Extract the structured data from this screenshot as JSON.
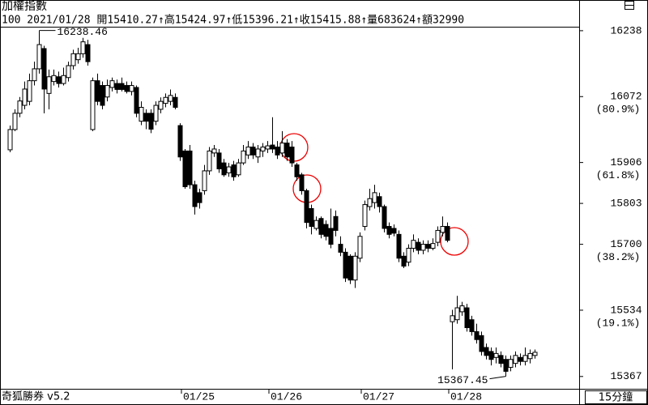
{
  "chart_data": {
    "type": "candlestick",
    "title": "加權指數",
    "subtitle": "100 2021/01/28 開15410.27↑高15424.97↑低15396.21↑收15415.88↑量683624↑額32990",
    "footer_left": "奇狐勝券 v5.2",
    "interval": "15分鐘",
    "up_color": "#ffffff",
    "down_color": "#000000",
    "ylim": [
      15336,
      16248
    ],
    "yticks": [
      16238,
      16072,
      15906,
      15803,
      15700,
      15534,
      15367
    ],
    "fib_levels": [
      {
        "value": 16072,
        "label": "(80.9%)"
      },
      {
        "value": 15906,
        "label": "(61.8%)"
      },
      {
        "value": 15700,
        "label": "(38.2%)"
      },
      {
        "value": 15534,
        "label": "(19.1%)"
      }
    ],
    "annotations": [
      {
        "value": 16238.46,
        "label": "16238.46"
      },
      {
        "value": 15367.45,
        "label": "15367.45"
      }
    ],
    "categories": [
      null,
      null,
      null,
      null,
      null,
      null,
      null,
      null,
      null,
      null,
      null,
      null,
      null,
      null,
      null,
      null,
      null,
      null,
      null,
      null,
      null,
      null,
      null,
      null,
      null,
      null,
      null,
      null,
      null,
      null,
      null,
      null,
      null,
      null,
      null,
      null,
      "01/25",
      null,
      null,
      null,
      null,
      null,
      null,
      null,
      null,
      null,
      null,
      null,
      null,
      null,
      null,
      null,
      null,
      null,
      "01/26",
      null,
      null,
      null,
      null,
      null,
      null,
      null,
      null,
      null,
      null,
      null,
      null,
      null,
      null,
      null,
      null,
      null,
      null,
      "01/27",
      null,
      null,
      null,
      null,
      null,
      null,
      null,
      null,
      null,
      null,
      null,
      null,
      null,
      null,
      null,
      null,
      null,
      "01/28",
      null,
      null,
      null,
      null,
      null,
      null,
      null,
      null,
      null,
      null,
      null,
      null,
      null,
      null,
      null,
      null,
      null
    ],
    "ohlc": [
      [
        15938,
        15999,
        15932,
        15989
      ],
      [
        15989,
        16040,
        15985,
        16030
      ],
      [
        16030,
        16071,
        16020,
        16061
      ],
      [
        16050,
        16110,
        16040,
        16091
      ],
      [
        16060,
        16130,
        16050,
        16112
      ],
      [
        16112,
        16160,
        16100,
        16142
      ],
      [
        16142,
        16238.46,
        16130,
        16203
      ],
      [
        16193,
        16200,
        16030,
        16091
      ],
      [
        16080,
        16140,
        16040,
        16122
      ],
      [
        16110,
        16140,
        16100,
        16125
      ],
      [
        16122,
        16135,
        16095,
        16105
      ],
      [
        16105,
        16145,
        16100,
        16125
      ],
      [
        16120,
        16160,
        16110,
        16150
      ],
      [
        16150,
        16190,
        16140,
        16180
      ],
      [
        16165,
        16195,
        16155,
        16180
      ],
      [
        16180,
        16220,
        16170,
        16210
      ],
      [
        16203,
        16215,
        16150,
        16160
      ],
      [
        15989,
        16120,
        15985,
        16112
      ],
      [
        16112,
        16130,
        16050,
        16060
      ],
      [
        16100,
        16110,
        16040,
        16050
      ],
      [
        16071,
        16115,
        16060,
        16100
      ],
      [
        16095,
        16120,
        16085,
        16112
      ],
      [
        16105,
        16115,
        16080,
        16090
      ],
      [
        16105,
        16120,
        16085,
        16090
      ],
      [
        16100,
        16110,
        16080,
        16085
      ],
      [
        16085,
        16110,
        16075,
        16100
      ],
      [
        16095,
        16100,
        16020,
        16030
      ],
      [
        16010,
        16060,
        16000,
        16045
      ],
      [
        16030,
        16040,
        15990,
        16010
      ],
      [
        16030,
        16040,
        15980,
        15990
      ],
      [
        16010,
        16060,
        16000,
        16050
      ],
      [
        16040,
        16070,
        16030,
        16060
      ],
      [
        16055,
        16080,
        16045,
        16070
      ],
      [
        16060,
        16090,
        16050,
        16075
      ],
      [
        16070,
        16080,
        16040,
        16045
      ],
      [
        15999,
        16005,
        15910,
        15920
      ],
      [
        15935,
        15940,
        15840,
        15845
      ],
      [
        15935,
        15950,
        15840,
        15850
      ],
      [
        15850,
        15860,
        15775,
        15795
      ],
      [
        15830,
        15840,
        15790,
        15805
      ],
      [
        15835,
        15900,
        15825,
        15885
      ],
      [
        15885,
        15945,
        15875,
        15935
      ],
      [
        15930,
        15950,
        15920,
        15940
      ],
      [
        15930,
        15940,
        15880,
        15890
      ],
      [
        15905,
        15915,
        15870,
        15875
      ],
      [
        15880,
        15905,
        15870,
        15895
      ],
      [
        15900,
        15910,
        15860,
        15870
      ],
      [
        15875,
        15915,
        15870,
        15905
      ],
      [
        15905,
        15950,
        15900,
        15935
      ],
      [
        15925,
        15960,
        15915,
        15945
      ],
      [
        15945,
        15955,
        15915,
        15925
      ],
      [
        15920,
        15950,
        15905,
        15940
      ],
      [
        15935,
        15955,
        15920,
        15945
      ],
      [
        15940,
        15960,
        15930,
        15948
      ],
      [
        15950,
        16020,
        15930,
        15940
      ],
      [
        15945,
        15960,
        15915,
        15925
      ],
      [
        15930,
        15985,
        15920,
        15955
      ],
      [
        15955,
        15965,
        15910,
        15920
      ],
      [
        15945,
        15960,
        15895,
        15905
      ],
      [
        15900,
        15905,
        15860,
        15870
      ],
      [
        15875,
        15880,
        15825,
        15835
      ],
      [
        15835,
        15840,
        15740,
        15755
      ],
      [
        15790,
        15800,
        15725,
        15745
      ],
      [
        15740,
        15770,
        15735,
        15760
      ],
      [
        15765,
        15770,
        15715,
        15725
      ],
      [
        15750,
        15760,
        15710,
        15720
      ],
      [
        15740,
        15790,
        15690,
        15700
      ],
      [
        15770,
        15785,
        15720,
        15735
      ],
      [
        15700,
        15720,
        15670,
        15680
      ],
      [
        15680,
        15690,
        15605,
        15615
      ],
      [
        15670,
        15675,
        15600,
        15610
      ],
      [
        15610,
        15680,
        15590,
        15670
      ],
      [
        15665,
        15730,
        15655,
        15720
      ],
      [
        15745,
        15810,
        15735,
        15800
      ],
      [
        15795,
        15840,
        15785,
        15815
      ],
      [
        15805,
        15850,
        15790,
        15830
      ],
      [
        15820,
        15830,
        15780,
        15795
      ],
      [
        15795,
        15800,
        15730,
        15740
      ],
      [
        15745,
        15755,
        15715,
        15725
      ],
      [
        15740,
        15750,
        15720,
        15728
      ],
      [
        15725,
        15735,
        15655,
        15665
      ],
      [
        15670,
        15680,
        15640,
        15645
      ],
      [
        15655,
        15700,
        15645,
        15690
      ],
      [
        15690,
        15725,
        15680,
        15710
      ],
      [
        15705,
        15715,
        15675,
        15685
      ],
      [
        15685,
        15710,
        15675,
        15700
      ],
      [
        15700,
        15710,
        15680,
        15690
      ],
      [
        15690,
        15715,
        15685,
        15702
      ],
      [
        15705,
        15745,
        15695,
        15735
      ],
      [
        15730,
        15770,
        15720,
        15745
      ],
      [
        15745,
        15755,
        15705,
        15710
      ],
      [
        15505,
        15535,
        15385,
        15520
      ],
      [
        15510,
        15570,
        15500,
        15540
      ],
      [
        15530,
        15555,
        15520,
        15545
      ],
      [
        15540,
        15550,
        15480,
        15490
      ],
      [
        15510,
        15520,
        15470,
        15480
      ],
      [
        15480,
        15500,
        15450,
        15460
      ],
      [
        15470,
        15480,
        15420,
        15430
      ],
      [
        15440,
        15450,
        15410,
        15420
      ],
      [
        15430,
        15440,
        15395,
        15410
      ],
      [
        15415,
        15440,
        15400,
        15425
      ],
      [
        15420,
        15430,
        15390,
        15400
      ],
      [
        15410,
        15420,
        15367.45,
        15380
      ],
      [
        15390,
        15420,
        15380,
        15410
      ],
      [
        15400,
        15430,
        15390,
        15420
      ],
      [
        15415,
        15425,
        15395,
        15405
      ],
      [
        15405,
        15440,
        15395,
        15420
      ],
      [
        15412,
        15435,
        15400,
        15425
      ],
      [
        15420,
        15435,
        15412,
        15428
      ]
    ]
  }
}
